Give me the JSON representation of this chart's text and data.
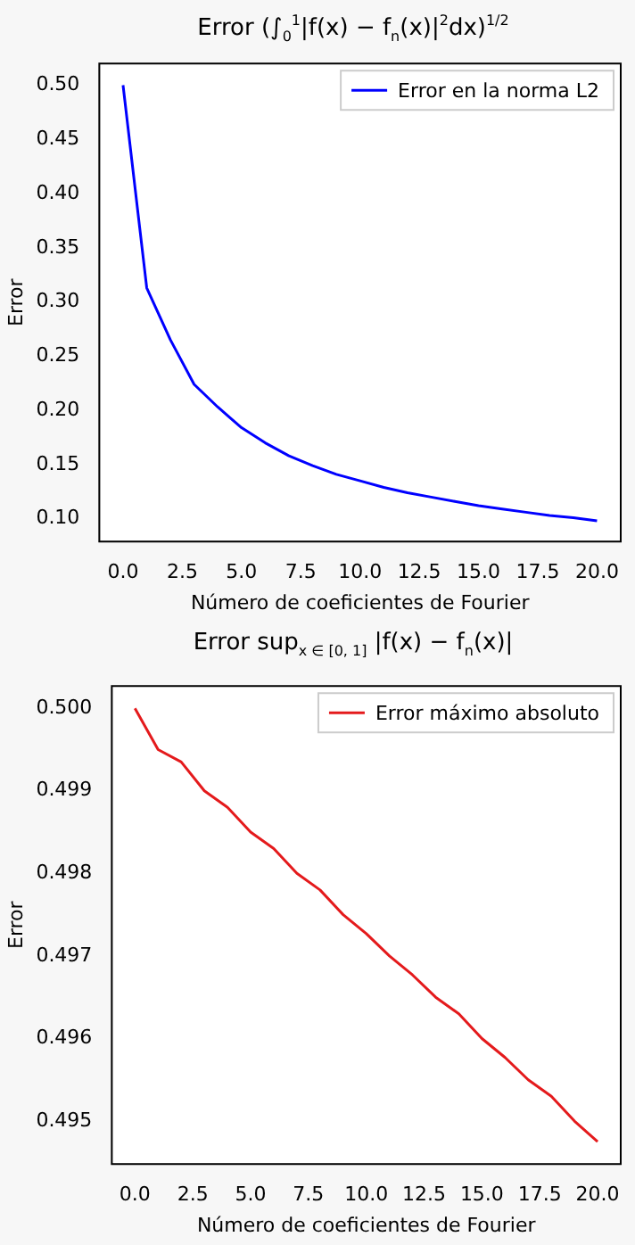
{
  "chart_data": [
    {
      "type": "line",
      "title": "Error (∫$_{0}$$^{1}$|f(x) − f$_{n}$(x)|$^{2}$dx)$^{1/2}$",
      "xlabel": "Número de coeficientes de Fourier",
      "ylabel": "Error",
      "x": [
        0,
        1,
        2,
        3,
        4,
        5,
        6,
        7,
        8,
        9,
        10,
        11,
        12,
        13,
        14,
        15,
        16,
        17,
        18,
        19,
        20
      ],
      "series": [
        {
          "name": "Error en la norma L2",
          "color": "#0000ff",
          "values": [
            0.5,
            0.313,
            0.265,
            0.224,
            0.203,
            0.184,
            0.17,
            0.158,
            0.149,
            0.141,
            0.135,
            0.129,
            0.124,
            0.12,
            0.116,
            0.112,
            0.109,
            0.106,
            0.103,
            0.101,
            0.098
          ]
        }
      ],
      "xlim": [
        -1,
        21
      ],
      "xticks": [
        {
          "value": 0,
          "label": "0.0"
        },
        {
          "value": 2.5,
          "label": "2.5"
        },
        {
          "value": 5,
          "label": "5.0"
        },
        {
          "value": 7.5,
          "label": "7.5"
        },
        {
          "value": 10,
          "label": "10.0"
        },
        {
          "value": 12.5,
          "label": "12.5"
        },
        {
          "value": 15,
          "label": "15.0"
        },
        {
          "value": 17.5,
          "label": "17.5"
        },
        {
          "value": 20,
          "label": "20.0"
        }
      ],
      "ylim": [
        0.079,
        0.52
      ],
      "yticks": [
        {
          "value": 0.1,
          "label": "0.10"
        },
        {
          "value": 0.15,
          "label": "0.15"
        },
        {
          "value": 0.2,
          "label": "0.20"
        },
        {
          "value": 0.25,
          "label": "0.25"
        },
        {
          "value": 0.3,
          "label": "0.30"
        },
        {
          "value": 0.35,
          "label": "0.35"
        },
        {
          "value": 0.4,
          "label": "0.40"
        },
        {
          "value": 0.45,
          "label": "0.45"
        },
        {
          "value": 0.5,
          "label": "0.50"
        }
      ],
      "legend": "top right",
      "grid": false,
      "marker": "none",
      "line_style": "solid"
    },
    {
      "type": "line",
      "title": "Error sup$_{x ∈ [0, 1]}$ |f(x) − f$_{n}$(x)|",
      "xlabel": "Número de coeficientes de Fourier",
      "ylabel": "Error",
      "x": [
        0,
        1,
        2,
        3,
        4,
        5,
        6,
        7,
        8,
        9,
        10,
        11,
        12,
        13,
        14,
        15,
        16,
        17,
        18,
        19,
        20
      ],
      "series": [
        {
          "name": "Error máximo absoluto",
          "color": "#e41a1c",
          "values": [
            0.5,
            0.4995,
            0.49935,
            0.499,
            0.4988,
            0.4985,
            0.4983,
            0.498,
            0.4978,
            0.4975,
            0.49727,
            0.497,
            0.49677,
            0.4965,
            0.4963,
            0.496,
            0.49577,
            0.4955,
            0.4953,
            0.495,
            0.49475
          ]
        }
      ],
      "xlim": [
        -1,
        21
      ],
      "xticks": [
        {
          "value": 0,
          "label": "0.0"
        },
        {
          "value": 2.5,
          "label": "2.5"
        },
        {
          "value": 5,
          "label": "5.0"
        },
        {
          "value": 7.5,
          "label": "7.5"
        },
        {
          "value": 10,
          "label": "10.0"
        },
        {
          "value": 12.5,
          "label": "12.5"
        },
        {
          "value": 15,
          "label": "15.0"
        },
        {
          "value": 17.5,
          "label": "17.5"
        },
        {
          "value": 20,
          "label": "20.0"
        }
      ],
      "ylim": [
        0.49448,
        0.50027
      ],
      "yticks": [
        {
          "value": 0.495,
          "label": "0.495"
        },
        {
          "value": 0.496,
          "label": "0.496"
        },
        {
          "value": 0.497,
          "label": "0.497"
        },
        {
          "value": 0.498,
          "label": "0.498"
        },
        {
          "value": 0.499,
          "label": "0.499"
        },
        {
          "value": 0.5,
          "label": "0.500"
        }
      ],
      "legend": "top right",
      "grid": false,
      "marker": "none",
      "line_style": "solid"
    }
  ]
}
